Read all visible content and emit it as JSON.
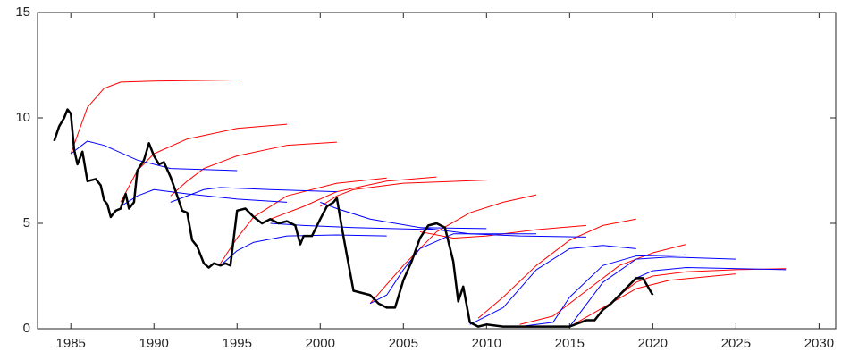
{
  "chart_data": {
    "type": "line",
    "xlim": [
      1983,
      2031
    ],
    "xticks": [
      1985,
      1990,
      1995,
      2000,
      2005,
      2010,
      2015,
      2020,
      2025,
      2030
    ],
    "ylim": [
      0,
      15
    ],
    "yticks": [
      0,
      5,
      10,
      15
    ],
    "series": [
      {
        "color": "#ff0000",
        "line_width": 1,
        "x": [
          1985,
          1986,
          1987,
          1988,
          1990,
          1995
        ],
        "values": [
          8.3,
          10.5,
          11.4,
          11.7,
          11.75,
          11.8
        ]
      },
      {
        "color": "#ff0000",
        "line_width": 1,
        "x": [
          1988,
          1989,
          1990,
          1992,
          1995,
          1998
        ],
        "values": [
          6.0,
          7.5,
          8.3,
          9.0,
          9.5,
          9.7
        ]
      },
      {
        "color": "#ff0000",
        "line_width": 1,
        "x": [
          1991,
          1992,
          1993,
          1995,
          1998,
          2001
        ],
        "values": [
          6.3,
          7.0,
          7.6,
          8.2,
          8.7,
          8.85
        ]
      },
      {
        "color": "#ff0000",
        "line_width": 1,
        "x": [
          1994,
          1995,
          1996,
          1998,
          2001,
          2004
        ],
        "values": [
          3.1,
          4.3,
          5.3,
          6.3,
          6.9,
          7.15
        ]
      },
      {
        "color": "#ff0000",
        "line_width": 1,
        "x": [
          1997,
          1999,
          2001,
          2004,
          2007
        ],
        "values": [
          5.2,
          5.8,
          6.5,
          7.0,
          7.2
        ]
      },
      {
        "color": "#ff0000",
        "line_width": 1,
        "x": [
          2000,
          2001,
          2002,
          2005,
          2010
        ],
        "values": [
          5.8,
          6.3,
          6.6,
          6.9,
          7.05
        ]
      },
      {
        "color": "#ff0000",
        "line_width": 1,
        "x": [
          2003,
          2005,
          2007,
          2009,
          2011,
          2013
        ],
        "values": [
          1.2,
          3.0,
          4.6,
          5.5,
          6.0,
          6.35
        ]
      },
      {
        "color": "#ff0000",
        "line_width": 1,
        "x": [
          2006,
          2008,
          2010,
          2013,
          2016
        ],
        "values": [
          4.6,
          4.3,
          4.4,
          4.7,
          4.9
        ]
      },
      {
        "color": "#ff0000",
        "line_width": 1,
        "x": [
          2009.5,
          2011,
          2013,
          2015,
          2017,
          2019
        ],
        "values": [
          0.5,
          1.5,
          3.0,
          4.2,
          4.9,
          5.2
        ]
      },
      {
        "color": "#ff0000",
        "line_width": 1,
        "x": [
          2012,
          2014,
          2016,
          2018,
          2020,
          2022
        ],
        "values": [
          0.2,
          0.6,
          1.8,
          3.0,
          3.6,
          4.0
        ]
      },
      {
        "color": "#ff0000",
        "line_width": 1,
        "x": [
          2015,
          2017,
          2019,
          2021,
          2025
        ],
        "values": [
          0.1,
          1.0,
          1.9,
          2.3,
          2.6
        ]
      },
      {
        "color": "#ff0000",
        "line_width": 1,
        "x": [
          2018,
          2019,
          2020,
          2022,
          2025,
          2028
        ],
        "values": [
          1.6,
          2.2,
          2.5,
          2.7,
          2.8,
          2.85
        ]
      },
      {
        "color": "#0000ff",
        "line_width": 1,
        "x": [
          1985,
          1986,
          1987,
          1989,
          1991,
          1995
        ],
        "values": [
          8.3,
          8.9,
          8.7,
          8.0,
          7.6,
          7.5
        ]
      },
      {
        "color": "#0000ff",
        "line_width": 1,
        "x": [
          1988,
          1989,
          1990,
          1992,
          1995,
          1998
        ],
        "values": [
          5.8,
          6.3,
          6.6,
          6.4,
          6.15,
          6.0
        ]
      },
      {
        "color": "#0000ff",
        "line_width": 1,
        "x": [
          1991,
          1993,
          1994,
          1997,
          2001
        ],
        "values": [
          6.0,
          6.6,
          6.7,
          6.6,
          6.5
        ]
      },
      {
        "color": "#0000ff",
        "line_width": 1,
        "x": [
          1994,
          1995,
          1996,
          1998,
          2001,
          2004
        ],
        "values": [
          3.0,
          3.7,
          4.1,
          4.4,
          4.45,
          4.4
        ]
      },
      {
        "color": "#0000ff",
        "line_width": 1,
        "x": [
          1997,
          1999,
          2002,
          2007
        ],
        "values": [
          5.0,
          4.9,
          4.8,
          4.7
        ]
      },
      {
        "color": "#0000ff",
        "line_width": 1,
        "x": [
          2000,
          2001,
          2003,
          2006,
          2010
        ],
        "values": [
          6.0,
          5.7,
          5.2,
          4.8,
          4.75
        ]
      },
      {
        "color": "#0000ff",
        "line_width": 1,
        "x": [
          2003,
          2004,
          2005,
          2006,
          2008,
          2013
        ],
        "values": [
          1.2,
          1.6,
          2.8,
          3.8,
          4.5,
          4.5
        ]
      },
      {
        "color": "#0000ff",
        "line_width": 1,
        "x": [
          2006,
          2009,
          2012,
          2016
        ],
        "values": [
          4.8,
          4.5,
          4.4,
          4.35
        ]
      },
      {
        "color": "#0000ff",
        "line_width": 1,
        "x": [
          2009,
          2011,
          2013,
          2015,
          2017,
          2019
        ],
        "values": [
          0.2,
          1.0,
          2.8,
          3.8,
          3.95,
          3.8
        ]
      },
      {
        "color": "#0000ff",
        "line_width": 1,
        "x": [
          2012,
          2014,
          2015,
          2017,
          2019,
          2022
        ],
        "values": [
          0.1,
          0.3,
          1.5,
          3.0,
          3.45,
          3.5
        ]
      },
      {
        "color": "#0000ff",
        "line_width": 1,
        "x": [
          2015,
          2017,
          2019,
          2021,
          2025
        ],
        "values": [
          0.1,
          2.2,
          3.3,
          3.4,
          3.3
        ]
      },
      {
        "color": "#0000ff",
        "line_width": 1,
        "x": [
          2018,
          2019,
          2020,
          2022,
          2028
        ],
        "values": [
          1.6,
          2.4,
          2.75,
          2.9,
          2.8
        ]
      },
      {
        "color": "#000000",
        "line_width": 2.5,
        "x": [
          1984.0,
          1984.3,
          1984.6,
          1984.8,
          1985.0,
          1985.2,
          1985.4,
          1985.7,
          1986.0,
          1986.5,
          1986.8,
          1987.0,
          1987.2,
          1987.4,
          1987.7,
          1988.0,
          1988.3,
          1988.5,
          1988.8,
          1989.0,
          1989.4,
          1989.7,
          1990.0,
          1990.3,
          1990.6,
          1991.0,
          1991.4,
          1991.7,
          1992.0,
          1992.3,
          1992.6,
          1993.0,
          1993.3,
          1993.6,
          1994.0,
          1994.3,
          1994.6,
          1995.0,
          1995.5,
          1996.0,
          1996.5,
          1997.0,
          1997.5,
          1998.0,
          1998.5,
          1998.8,
          1999.0,
          1999.5,
          2000.0,
          2000.4,
          2000.8,
          2001.0,
          2001.3,
          2001.6,
          2002.0,
          2002.5,
          2003.0,
          2003.5,
          2004.0,
          2004.5,
          2005.0,
          2005.5,
          2006.0,
          2006.5,
          2007.0,
          2007.5,
          2008.0,
          2008.3,
          2008.6,
          2009.0,
          2009.5,
          2010.0,
          2011.0,
          2012.0,
          2013.0,
          2014.0,
          2015.0,
          2016.0,
          2016.5,
          2017.0,
          2017.5,
          2018.0,
          2018.5,
          2019.0,
          2019.4,
          2019.7,
          2020.0
        ],
        "values": [
          8.9,
          9.6,
          10.0,
          10.4,
          10.2,
          8.5,
          7.8,
          8.4,
          7.0,
          7.1,
          6.8,
          6.1,
          5.9,
          5.3,
          5.6,
          5.7,
          6.4,
          5.7,
          6.0,
          7.5,
          8.0,
          8.8,
          8.2,
          7.8,
          7.9,
          7.2,
          6.3,
          5.6,
          5.5,
          4.2,
          3.9,
          3.1,
          2.9,
          3.1,
          3.0,
          3.1,
          3.0,
          5.6,
          5.7,
          5.3,
          5.0,
          5.2,
          5.0,
          5.1,
          4.9,
          4.0,
          4.4,
          4.4,
          5.2,
          5.8,
          6.0,
          6.2,
          4.8,
          3.5,
          1.8,
          1.7,
          1.6,
          1.2,
          1.0,
          1.0,
          2.3,
          3.2,
          4.3,
          4.9,
          5.0,
          4.8,
          3.2,
          1.3,
          2.0,
          0.3,
          0.1,
          0.2,
          0.1,
          0.1,
          0.1,
          0.1,
          0.1,
          0.4,
          0.4,
          0.9,
          1.2,
          1.6,
          2.0,
          2.4,
          2.4,
          2.0,
          1.6
        ]
      }
    ]
  }
}
